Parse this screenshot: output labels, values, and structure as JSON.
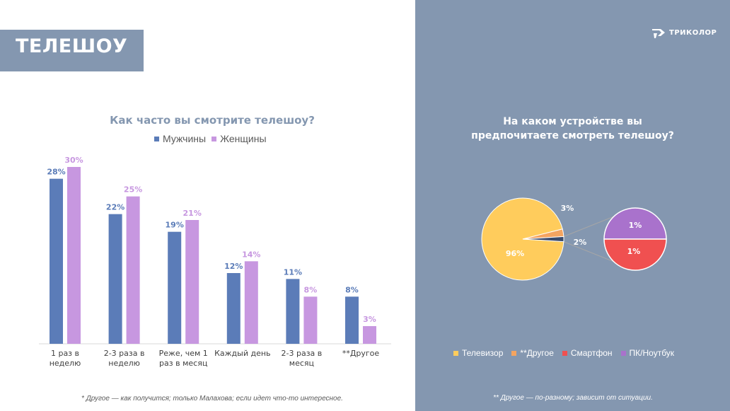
{
  "header": {
    "title": "ТЕЛЕШОУ"
  },
  "brand": {
    "name": "ТРИКОЛОР",
    "logo_icon": "tricolor-logo-icon"
  },
  "colors": {
    "men": "#5b7cb8",
    "women": "#c797e0",
    "panel": "#8497b0",
    "tv": "#ffcc5c",
    "other": "#f4a460",
    "smartphone": "#f05050",
    "pc": "#a972cc"
  },
  "chart_data": [
    {
      "type": "bar",
      "title": "Как часто вы смотрите телешоу?",
      "categories": [
        [
          "1 раз в",
          "неделю"
        ],
        [
          "2-3 раза в",
          "неделю"
        ],
        [
          "Реже, чем 1",
          "раз в месяц"
        ],
        [
          "Каждый день"
        ],
        [
          "2-3 раза в",
          "месяц"
        ],
        [
          "**Другое"
        ]
      ],
      "series": [
        {
          "name": "Мужчины",
          "values": [
            28,
            22,
            19,
            12,
            11,
            8
          ],
          "labels": [
            "28%",
            "22%",
            "19%",
            "12%",
            "11%",
            "8%"
          ]
        },
        {
          "name": "Женщины",
          "values": [
            30,
            25,
            21,
            14,
            8,
            3
          ],
          "labels": [
            "30%",
            "25%",
            "21%",
            "14%",
            "8%",
            "3%"
          ]
        }
      ],
      "ylim": [
        0,
        30
      ],
      "legend": "top"
    },
    {
      "type": "pie",
      "title": "На каком устройстве вы предпочитаете смотреть телешоу?",
      "title_lines": [
        "На каком устройстве вы",
        "предпочитаете смотреть телешоу?"
      ],
      "slices": [
        {
          "name": "Телевизор",
          "value": 96,
          "label": "96%"
        },
        {
          "name": "**Другое",
          "value": 3,
          "label": "3%"
        },
        {
          "name": "Смартфон",
          "value": 1,
          "label": "1%"
        },
        {
          "name": "ПК/Ноутбук",
          "value": 1,
          "label": "1%"
        }
      ],
      "breakout_label": "2%",
      "legend": "bottom"
    }
  ],
  "footnotes": {
    "left": "* Другое — как получится; только Малахова; если идет что-то интересное.",
    "right": "** Другое — по-разному; зависит от ситуации."
  }
}
